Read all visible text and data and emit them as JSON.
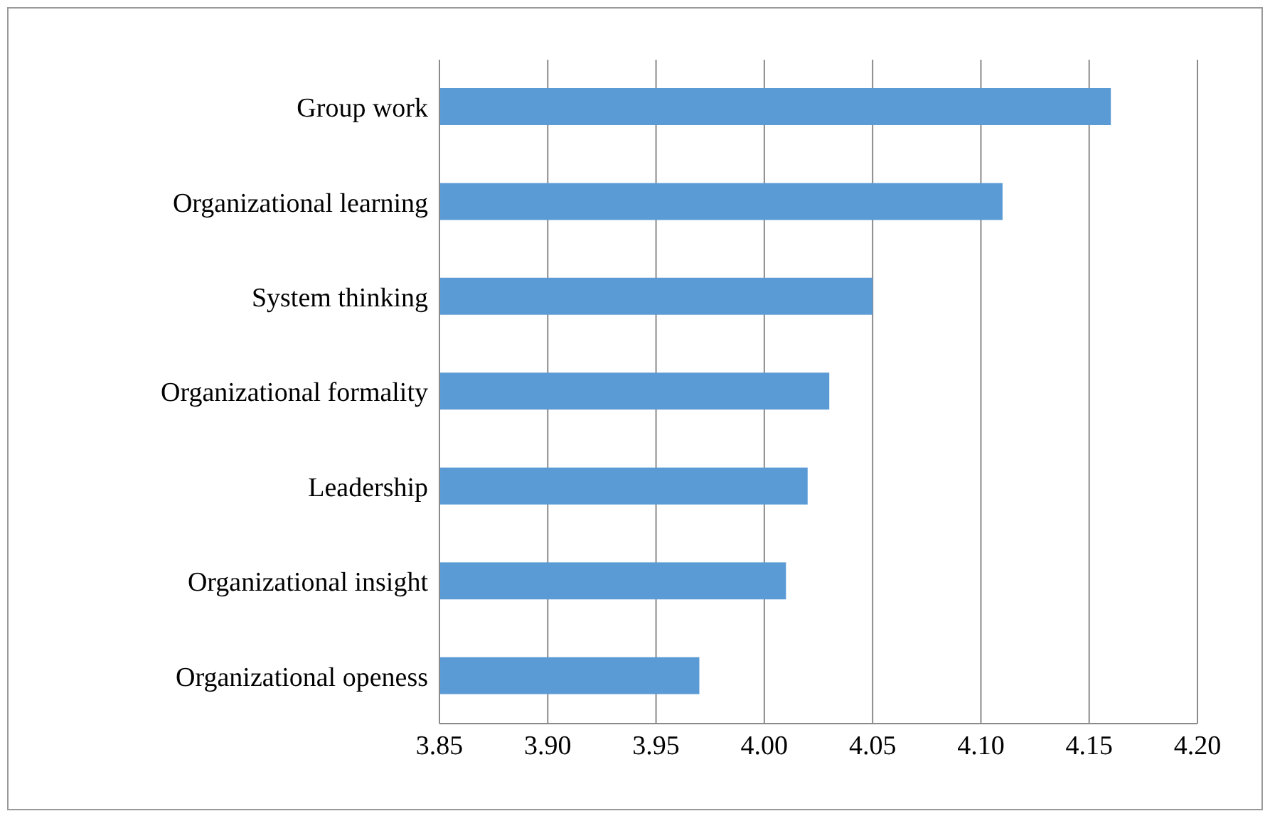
{
  "chart_data": {
    "type": "bar",
    "orientation": "horizontal",
    "categories": [
      "Group work",
      "Organizational learning",
      "System thinking",
      "Organizational formality ",
      "Leadership",
      "Organizational insight",
      "Organizational openess"
    ],
    "values": [
      4.16,
      4.11,
      4.05,
      4.03,
      4.02,
      4.01,
      3.97
    ],
    "color": "#5b9bd5",
    "xlim": [
      3.85,
      4.2
    ],
    "xticks": [
      {
        "value": 3.85,
        "label": "3.85"
      },
      {
        "value": 3.9,
        "label": "3.90"
      },
      {
        "value": 3.95,
        "label": "3.95"
      },
      {
        "value": 4.0,
        "label": "4.00"
      },
      {
        "value": 4.05,
        "label": "4.05"
      },
      {
        "value": 4.1,
        "label": "4.10"
      },
      {
        "value": 4.15,
        "label": "4.15"
      },
      {
        "value": 4.2,
        "label": "4.20"
      }
    ],
    "grid": "x",
    "legend": false
  }
}
